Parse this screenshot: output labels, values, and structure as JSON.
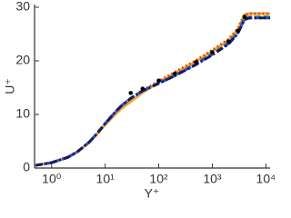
{
  "chart_data": {
    "type": "line",
    "xlabel": "Y⁺",
    "ylabel": "U⁺",
    "xscale": "log",
    "xlim": [
      0.48,
      12000
    ],
    "ylim": [
      0,
      30.5
    ],
    "xticks": [
      {
        "value": 1,
        "label": "10⁰"
      },
      {
        "value": 10,
        "label": "10¹"
      },
      {
        "value": 100,
        "label": "10²"
      },
      {
        "value": 1000,
        "label": "10³"
      },
      {
        "value": 10000,
        "label": "10⁴"
      }
    ],
    "yticks": [
      0,
      10,
      20,
      30
    ],
    "x": [
      0.5,
      1,
      2,
      3,
      5,
      7,
      10,
      15,
      20,
      30,
      50,
      100,
      200,
      500,
      1000,
      2000,
      3000,
      4000,
      5000,
      12000
    ],
    "series": [
      {
        "color": "#f5a623",
        "linestyle": "solid",
        "values": [
          0.5,
          1.0,
          2.0,
          3.0,
          4.8,
          6.3,
          8.1,
          9.9,
          11.1,
          12.4,
          14.1,
          16.0,
          17.7,
          19.9,
          21.8,
          23.8,
          25.8,
          28.6,
          28.8,
          28.8
        ]
      },
      {
        "color": "#e8321e",
        "linestyle": "dotted",
        "values": [
          0.5,
          1.0,
          2.0,
          3.0,
          4.8,
          6.4,
          8.3,
          10.3,
          11.6,
          13.0,
          14.5,
          16.2,
          17.9,
          20.1,
          22.0,
          24.0,
          26.0,
          28.6,
          28.8,
          28.8
        ]
      },
      {
        "color": "#3aa53a",
        "linestyle": "dashed",
        "values": [
          0.5,
          1.0,
          2.0,
          3.0,
          4.8,
          6.4,
          8.3,
          10.3,
          11.6,
          13.0,
          14.4,
          15.9,
          17.3,
          19.5,
          21.3,
          23.3,
          25.3,
          28.0,
          28.2,
          28.2
        ]
      },
      {
        "color": "#1f4fe0",
        "linestyle": "dashed",
        "values": [
          0.5,
          1.0,
          2.0,
          3.0,
          4.8,
          6.4,
          8.3,
          10.3,
          11.6,
          13.0,
          14.4,
          15.8,
          17.2,
          19.4,
          21.2,
          23.2,
          25.2,
          27.8,
          28.0,
          28.0
        ]
      },
      {
        "color": "#1a1a5e",
        "linestyle": "dashdot",
        "values": [
          0.5,
          1.0,
          2.0,
          3.0,
          4.8,
          6.4,
          8.3,
          10.3,
          11.6,
          13.0,
          14.4,
          15.8,
          17.2,
          19.3,
          21.1,
          23.1,
          25.1,
          27.7,
          28.0,
          28.0
        ]
      },
      {
        "color": "#000000",
        "linestyle": "dots",
        "values": [
          null,
          null,
          null,
          null,
          null,
          null,
          null,
          null,
          null,
          14.0,
          14.8,
          16.3,
          17.6,
          19.8,
          21.6,
          23.6,
          25.6,
          28.2,
          null,
          null
        ]
      }
    ]
  }
}
